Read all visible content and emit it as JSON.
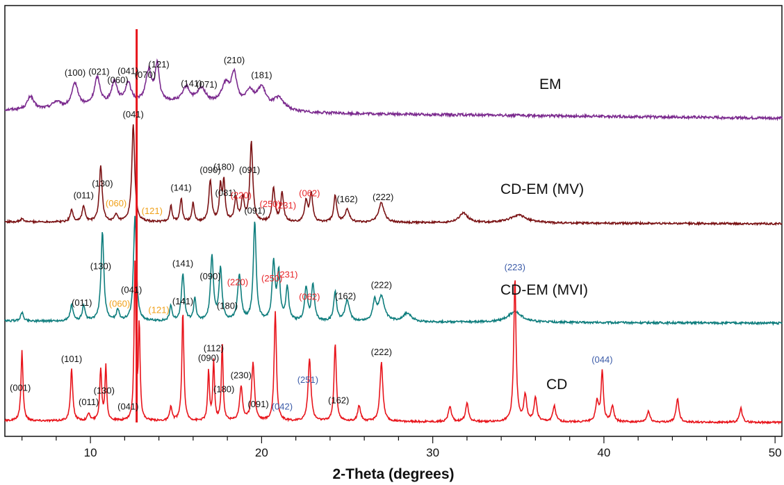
{
  "chart_data": {
    "type": "line",
    "title": "",
    "xlabel": "2-Theta (degrees)",
    "ylabel": "",
    "xlim": [
      5,
      50.4
    ],
    "grid": false,
    "legend": "inline labels at the right of each trace",
    "x_ticks": [
      10,
      20,
      30,
      40,
      50
    ],
    "x_tick_labels": [
      "10",
      "20",
      "30",
      "40",
      "50"
    ],
    "colors": {
      "EM": "#7b2a8e",
      "CD-EM (MV)": "#7a1214",
      "CD-EM (MVI)": "#0e7d7d",
      "CD": "#e8141b",
      "marker_line": "#e8141b"
    },
    "label_colors": {
      "black": "#111111",
      "red": "#e8262a",
      "orange": "#f0a018",
      "blue": "#3b5ba8"
    },
    "reference_line_x": 12.7,
    "series": [
      {
        "name": "EM",
        "baseline_start": 0.14,
        "baseline_end": 0.02,
        "noise": 0.04,
        "peaks": [
          [
            6.5,
            0.2,
            0.22
          ],
          [
            8.0,
            0.1,
            0.3
          ],
          [
            9.1,
            0.36,
            0.22
          ],
          [
            10.4,
            0.42,
            0.2
          ],
          [
            11.4,
            0.34,
            0.2
          ],
          [
            12.2,
            0.3,
            0.2
          ],
          [
            13.4,
            0.46,
            0.2
          ],
          [
            13.9,
            0.55,
            0.14
          ],
          [
            15.6,
            0.22,
            0.25
          ],
          [
            16.5,
            0.22,
            0.3
          ],
          [
            17.9,
            0.3,
            0.3
          ],
          [
            18.4,
            0.44,
            0.2
          ],
          [
            19.3,
            0.24,
            0.3
          ],
          [
            20.0,
            0.3,
            0.3
          ],
          [
            21.0,
            0.18,
            0.4
          ]
        ],
        "hump": [
          14.5,
          5,
          0.14
        ],
        "peak_labels": [
          {
            "x": 9.1,
            "text": "(100)",
            "color": "black"
          },
          {
            "x": 10.5,
            "text": "(021)",
            "color": "black"
          },
          {
            "x": 11.6,
            "text": "(060)",
            "color": "black"
          },
          {
            "x": 12.2,
            "text": "(041)",
            "color": "black"
          },
          {
            "x": 13.2,
            "text": "(070)",
            "color": "black"
          },
          {
            "x": 14.0,
            "text": "(121)",
            "color": "black"
          },
          {
            "x": 15.9,
            "text": "(141)",
            "color": "black"
          },
          {
            "x": 16.8,
            "text": "(071)",
            "color": "black"
          },
          {
            "x": 18.4,
            "text": "(210)",
            "color": "black"
          },
          {
            "x": 20.0,
            "text": "(181)",
            "color": "black"
          }
        ]
      },
      {
        "name": "CD-EM (MV)",
        "baseline_start": 0.02,
        "baseline_end": 0.0,
        "noise": 0.02,
        "peaks": [
          [
            6.0,
            0.03,
            0.1
          ],
          [
            8.9,
            0.12,
            0.1
          ],
          [
            9.6,
            0.16,
            0.1
          ],
          [
            10.6,
            0.57,
            0.1
          ],
          [
            11.5,
            0.07,
            0.1
          ],
          [
            12.5,
            1.0,
            0.1
          ],
          [
            14.7,
            0.17,
            0.08
          ],
          [
            15.3,
            0.24,
            0.08
          ],
          [
            16.0,
            0.2,
            0.08
          ],
          [
            17.0,
            0.42,
            0.1
          ],
          [
            17.6,
            0.36,
            0.08
          ],
          [
            17.8,
            0.4,
            0.08
          ],
          [
            18.5,
            0.24,
            0.1
          ],
          [
            18.9,
            0.24,
            0.1
          ],
          [
            19.4,
            0.82,
            0.1
          ],
          [
            20.7,
            0.35,
            0.1
          ],
          [
            21.2,
            0.3,
            0.1
          ],
          [
            22.6,
            0.22,
            0.1
          ],
          [
            22.9,
            0.3,
            0.1
          ],
          [
            24.3,
            0.28,
            0.1
          ],
          [
            25.0,
            0.13,
            0.15
          ],
          [
            27.0,
            0.2,
            0.2
          ],
          [
            31.8,
            0.1,
            0.3
          ],
          [
            35.0,
            0.08,
            0.6
          ]
        ],
        "peak_labels": [
          {
            "x": 9.6,
            "text": "(011)",
            "color": "black"
          },
          {
            "x": 10.7,
            "text": "(130)",
            "color": "black"
          },
          {
            "x": 11.5,
            "text": "(060)",
            "color": "orange"
          },
          {
            "x": 12.5,
            "text": "(041)",
            "color": "black"
          },
          {
            "x": 13.6,
            "text": "(121)",
            "color": "orange"
          },
          {
            "x": 15.3,
            "text": "(141)",
            "color": "black"
          },
          {
            "x": 17.0,
            "text": "(090)",
            "color": "black"
          },
          {
            "x": 17.8,
            "text": "(180)",
            "color": "black"
          },
          {
            "x": 17.9,
            "text": "(081)",
            "color": "black"
          },
          {
            "x": 19.3,
            "text": "(091)",
            "color": "black"
          },
          {
            "x": 18.8,
            "text": "(220)",
            "color": "red"
          },
          {
            "x": 20.5,
            "text": "(250)",
            "color": "red"
          },
          {
            "x": 21.4,
            "text": "(231)",
            "color": "red"
          },
          {
            "x": 22.8,
            "text": "(062)",
            "color": "red"
          },
          {
            "x": 25.0,
            "text": "(162)",
            "color": "black"
          },
          {
            "x": 27.1,
            "text": "(222)",
            "color": "black"
          }
        ]
      },
      {
        "name": "CD-EM (MVI)",
        "baseline_start": 0.02,
        "baseline_end": 0.0,
        "noise": 0.02,
        "peaks": [
          [
            6.0,
            0.08,
            0.1
          ],
          [
            8.9,
            0.15,
            0.1
          ],
          [
            9.6,
            0.14,
            0.1
          ],
          [
            10.7,
            0.85,
            0.1
          ],
          [
            11.6,
            0.1,
            0.1
          ],
          [
            12.6,
            1.0,
            0.1
          ],
          [
            14.7,
            0.15,
            0.08
          ],
          [
            15.4,
            0.45,
            0.1
          ],
          [
            16.1,
            0.22,
            0.08
          ],
          [
            17.1,
            0.63,
            0.1
          ],
          [
            17.6,
            0.5,
            0.1
          ],
          [
            18.7,
            0.44,
            0.12
          ],
          [
            19.6,
            0.95,
            0.1
          ],
          [
            20.7,
            0.55,
            0.1
          ],
          [
            21.0,
            0.45,
            0.1
          ],
          [
            21.5,
            0.32,
            0.1
          ],
          [
            22.6,
            0.32,
            0.1
          ],
          [
            23.0,
            0.35,
            0.1
          ],
          [
            24.3,
            0.28,
            0.1
          ],
          [
            25.0,
            0.2,
            0.15
          ],
          [
            26.6,
            0.18,
            0.12
          ],
          [
            27.0,
            0.24,
            0.2
          ],
          [
            28.5,
            0.08,
            0.3
          ],
          [
            34.8,
            0.1,
            0.5
          ]
        ],
        "peak_labels": [
          {
            "x": 9.5,
            "text": "(011)",
            "color": "black"
          },
          {
            "x": 10.6,
            "text": "(130)",
            "color": "black"
          },
          {
            "x": 11.7,
            "text": "(060)",
            "color": "orange"
          },
          {
            "x": 12.4,
            "text": "(041)",
            "color": "black"
          },
          {
            "x": 14.0,
            "text": "(121)",
            "color": "orange"
          },
          {
            "x": 15.4,
            "text": "(141)",
            "color": "black"
          },
          {
            "x": 17.0,
            "text": "(090)",
            "color": "black"
          },
          {
            "x": 18.0,
            "text": "(180)",
            "color": "black"
          },
          {
            "x": 18.6,
            "text": "(220)",
            "color": "red"
          },
          {
            "x": 19.6,
            "text": "(091)",
            "color": "black"
          },
          {
            "x": 20.6,
            "text": "(250)",
            "color": "red"
          },
          {
            "x": 21.5,
            "text": "(231)",
            "color": "red"
          },
          {
            "x": 22.8,
            "text": "(062)",
            "color": "red"
          },
          {
            "x": 24.9,
            "text": "(162)",
            "color": "black"
          },
          {
            "x": 27.0,
            "text": "(222)",
            "color": "black"
          }
        ]
      },
      {
        "name": "CD",
        "baseline_start": 0.01,
        "baseline_end": 0.0,
        "noise": 0.012,
        "peaks": [
          [
            6.0,
            0.45,
            0.07
          ],
          [
            8.9,
            0.33,
            0.08
          ],
          [
            9.9,
            0.05,
            0.08
          ],
          [
            10.6,
            0.33,
            0.07
          ],
          [
            10.9,
            0.35,
            0.06
          ],
          [
            12.6,
            1.0,
            0.06
          ],
          [
            12.85,
            0.6,
            0.06
          ],
          [
            14.7,
            0.09,
            0.08
          ],
          [
            15.4,
            0.7,
            0.07
          ],
          [
            16.9,
            0.32,
            0.06
          ],
          [
            17.2,
            0.38,
            0.06
          ],
          [
            17.7,
            0.5,
            0.06
          ],
          [
            18.8,
            0.22,
            0.1
          ],
          [
            19.5,
            0.37,
            0.1
          ],
          [
            20.8,
            0.7,
            0.08
          ],
          [
            22.8,
            0.4,
            0.1
          ],
          [
            24.3,
            0.5,
            0.08
          ],
          [
            25.7,
            0.1,
            0.1
          ],
          [
            27.0,
            0.38,
            0.1
          ],
          [
            31.0,
            0.1,
            0.1
          ],
          [
            32.0,
            0.12,
            0.1
          ],
          [
            34.8,
            0.92,
            0.08
          ],
          [
            35.4,
            0.17,
            0.1
          ],
          [
            36.0,
            0.15,
            0.1
          ],
          [
            37.1,
            0.1,
            0.1
          ],
          [
            39.6,
            0.13,
            0.1
          ],
          [
            39.9,
            0.32,
            0.08
          ],
          [
            40.5,
            0.1,
            0.1
          ],
          [
            42.6,
            0.07,
            0.1
          ],
          [
            44.3,
            0.15,
            0.1
          ],
          [
            48.0,
            0.09,
            0.1
          ]
        ],
        "peak_labels": [
          {
            "x": 5.9,
            "text": "(001)",
            "color": "black"
          },
          {
            "x": 8.9,
            "text": "(101)",
            "color": "black"
          },
          {
            "x": 9.9,
            "text": "(011)",
            "color": "black"
          },
          {
            "x": 10.8,
            "text": "(130)",
            "color": "black"
          },
          {
            "x": 12.2,
            "text": "(041)",
            "color": "black"
          },
          {
            "x": 15.4,
            "text": "(141)",
            "color": "black"
          },
          {
            "x": 16.9,
            "text": "(090)",
            "color": "black"
          },
          {
            "x": 17.2,
            "text": "(112)",
            "color": "black"
          },
          {
            "x": 17.8,
            "text": "(180)",
            "color": "black"
          },
          {
            "x": 18.8,
            "text": "(230)",
            "color": "black"
          },
          {
            "x": 19.8,
            "text": "(091)",
            "color": "black"
          },
          {
            "x": 21.2,
            "text": "(042)",
            "color": "blue"
          },
          {
            "x": 22.7,
            "text": "(251)",
            "color": "blue"
          },
          {
            "x": 24.5,
            "text": "(162)",
            "color": "black"
          },
          {
            "x": 27.0,
            "text": "(222)",
            "color": "black"
          },
          {
            "x": 34.8,
            "text": "(223)",
            "color": "blue"
          },
          {
            "x": 39.9,
            "text": "(044)",
            "color": "blue"
          }
        ]
      }
    ]
  }
}
